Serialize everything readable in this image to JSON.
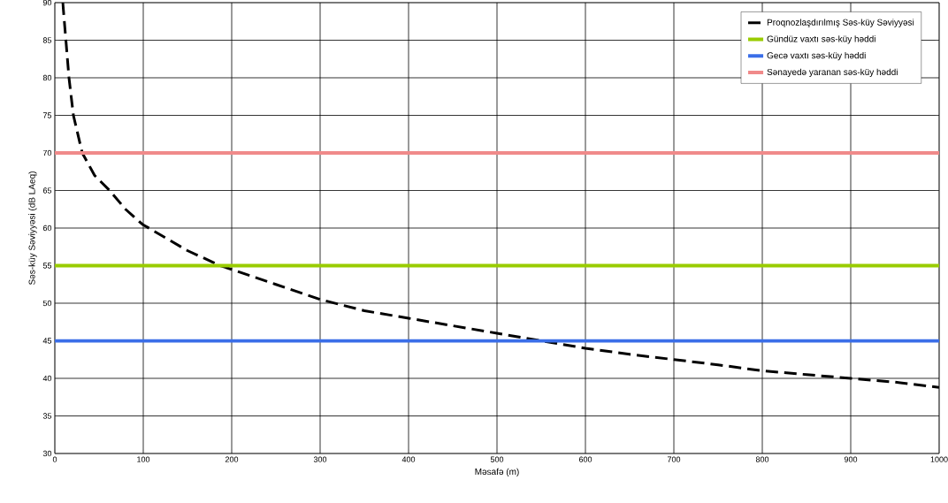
{
  "chart_data": {
    "type": "line",
    "xlabel": "Məsafə (m)",
    "ylabel": "Səs-küy Səviyyəsi (dB LAeq)",
    "xlim": [
      0,
      1000
    ],
    "ylim": [
      30,
      90
    ],
    "xticks": [
      0,
      100,
      200,
      300,
      400,
      500,
      600,
      700,
      800,
      900,
      1000
    ],
    "yticks": [
      30,
      35,
      40,
      45,
      50,
      55,
      60,
      65,
      70,
      75,
      80,
      85,
      90
    ],
    "grid": true,
    "legend": "top right",
    "series": [
      {
        "name": "Proqnozlaşdırılmış Səs-küy Səviyyəsi",
        "color": "#000000",
        "line_style": "dashed",
        "x": [
          9,
          12.5,
          16,
          21,
          31,
          45,
          62,
          80,
          99,
          150,
          187,
          200,
          250,
          300,
          350,
          400,
          450,
          500,
          550,
          600,
          650,
          700,
          750,
          800,
          850,
          900,
          950,
          1000
        ],
        "values": [
          90,
          85,
          80,
          75,
          70,
          67,
          65,
          62.5,
          60.5,
          57,
          55,
          54.5,
          52.5,
          50.5,
          49,
          48,
          47,
          46,
          45,
          44,
          43.2,
          42.5,
          41.8,
          41,
          40.5,
          40,
          39.5,
          38.8
        ]
      },
      {
        "name": "Gündüz vaxtı səs-küy həddi",
        "color": "#99cc00",
        "line_style": "solid",
        "x": [
          0,
          1000
        ],
        "values": [
          55,
          55
        ]
      },
      {
        "name": "Gecə vaxtı səs-küy həddi",
        "color": "#3a6ee8",
        "line_style": "solid",
        "x": [
          0,
          1000
        ],
        "values": [
          45,
          45
        ]
      },
      {
        "name": "Sənayedə yaranan səs-küy həddi",
        "color": "#f08a8a",
        "line_style": "solid",
        "x": [
          0,
          1000
        ],
        "values": [
          70,
          70
        ]
      }
    ]
  }
}
